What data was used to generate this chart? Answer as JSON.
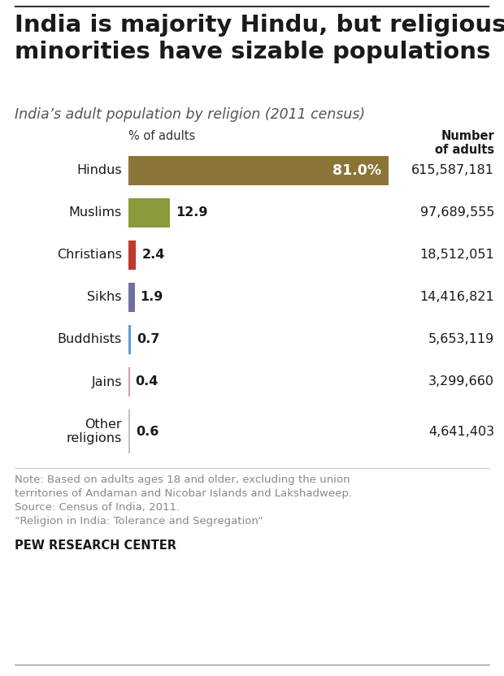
{
  "title": "India is majority Hindu, but religious\nminorities have sizable populations",
  "subtitle": "India’s adult population by religion (2011 census)",
  "col_header_pct": "% of adults",
  "col_header_num": "Number\nof adults",
  "categories": [
    "Hindus",
    "Muslims",
    "Christians",
    "Sikhs",
    "Buddhists",
    "Jains",
    "Other\nreligions"
  ],
  "values": [
    81.0,
    12.9,
    2.4,
    1.9,
    0.7,
    0.4,
    0.6
  ],
  "bar_colors": [
    "#8B7536",
    "#8C9A3C",
    "#C0392B",
    "#7070A0",
    "#5B9BD5",
    "#D4A0A0",
    "#C0C0C0"
  ],
  "numbers": [
    "615,587,181",
    "97,689,555",
    "18,512,051",
    "14,416,821",
    "5,653,119",
    "3,299,660",
    "4,641,403"
  ],
  "note_line1": "Note: Based on adults ages 18 and older, excluding the union",
  "note_line2": "territories of Andaman and Nicobar Islands and Lakshadweep.",
  "note_line3": "Source: Census of India, 2011.",
  "note_line4": "“Religion in India: Tolerance and Segregation”",
  "source_bold": "PEW RESEARCH CENTER",
  "bg_color": "#FFFFFF",
  "title_color": "#1a1a1a",
  "note_color": "#888888",
  "max_val": 81.0,
  "top_line_color": "#333333",
  "bottom_line_color": "#888888"
}
